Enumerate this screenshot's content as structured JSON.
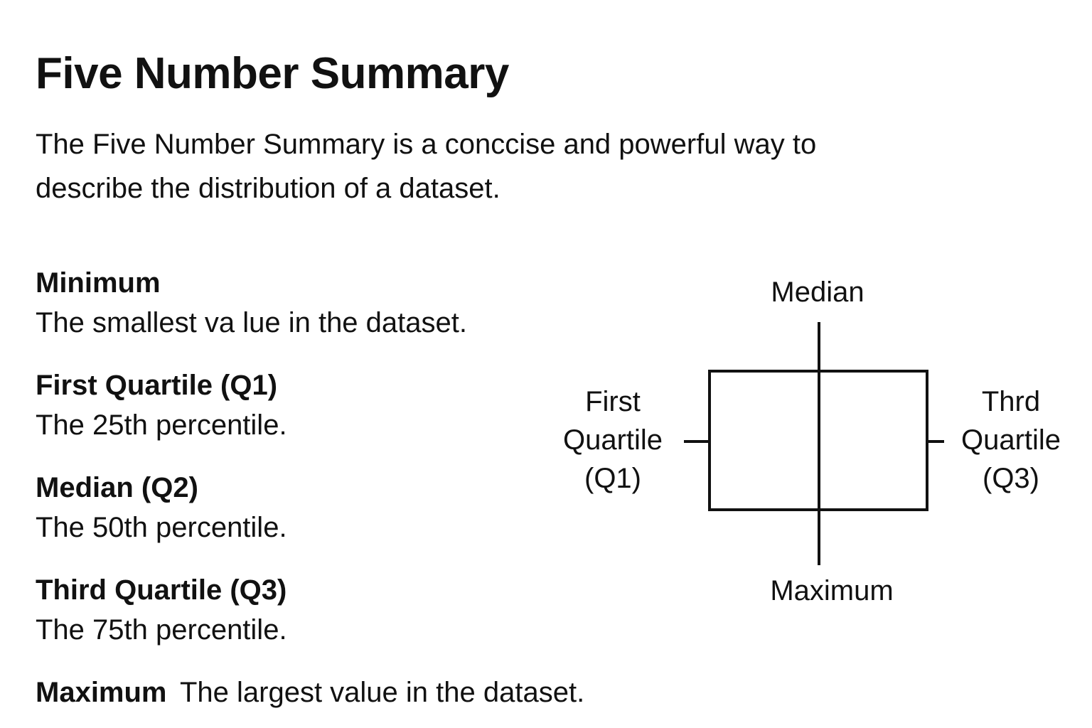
{
  "title": "Five Number Summary",
  "intro": "The Five Number Summary is a conccise and powerful way to describe the distribution of a dataset.",
  "terms": [
    {
      "name": "Minimum",
      "description": "The smallest va lue in the dataset."
    },
    {
      "name": "First Quartile (Q1)",
      "description": "The 25th percentile."
    },
    {
      "name": "Median (Q2)",
      "description": "The 50th percentile."
    },
    {
      "name": "Third Quartile (Q3)",
      "description": "The 75th percentile."
    },
    {
      "name": "Maximum",
      "description": "The largest value in the dataset."
    }
  ],
  "diagram": {
    "top_label": "Median",
    "bottom_label": "Maximum",
    "left_label": [
      "First",
      "Quartile",
      "(Q1)"
    ],
    "right_label": [
      "Thrd",
      "Quartile",
      "(Q3)"
    ],
    "stroke_color": "#111111"
  }
}
